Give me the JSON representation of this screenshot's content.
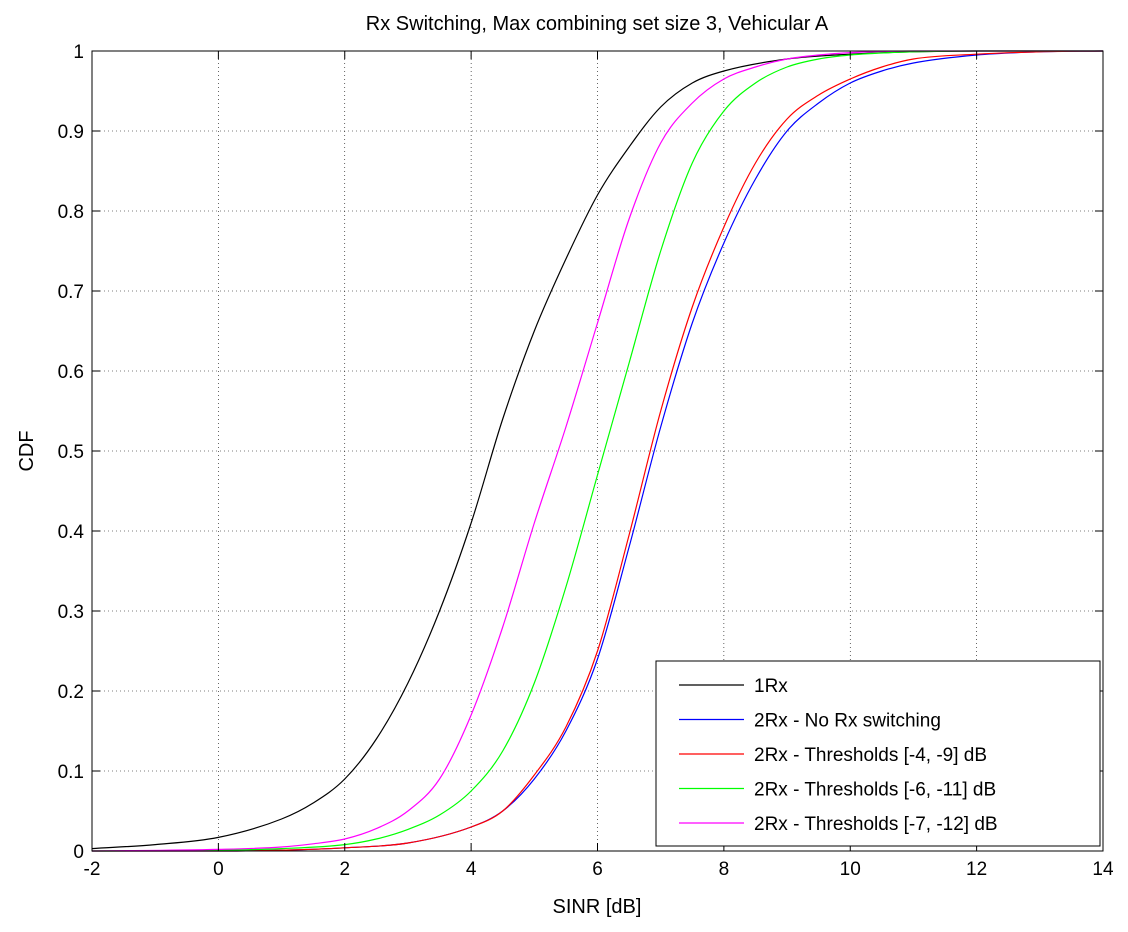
{
  "chart_data": {
    "type": "line",
    "title": "Rx Switching, Max combining set size 3, Vehicular A",
    "xlabel": "SINR [dB]",
    "ylabel": "CDF",
    "xlim": [
      -2,
      14
    ],
    "ylim": [
      0,
      1
    ],
    "xticks": [
      -2,
      0,
      2,
      4,
      6,
      8,
      10,
      12,
      14
    ],
    "yticks": [
      0,
      0.1,
      0.2,
      0.3,
      0.4,
      0.5,
      0.6,
      0.7,
      0.8,
      0.9,
      1
    ],
    "xtick_labels": [
      "-2",
      "0",
      "2",
      "4",
      "6",
      "8",
      "10",
      "12",
      "14"
    ],
    "ytick_labels": [
      "0",
      "0.1",
      "0.2",
      "0.3",
      "0.4",
      "0.5",
      "0.6",
      "0.7",
      "0.8",
      "0.9",
      "1"
    ],
    "grid": true,
    "legend_position": "bottom-right",
    "series": [
      {
        "name": "1Rx",
        "color": "#000000",
        "x": [
          -2,
          -1,
          0,
          1,
          1.5,
          2,
          2.5,
          3,
          3.5,
          4,
          4.5,
          5,
          5.5,
          6,
          6.5,
          7,
          7.5,
          8,
          9,
          10,
          11,
          12,
          13,
          14
        ],
        "y": [
          0.003,
          0.008,
          0.017,
          0.04,
          0.06,
          0.09,
          0.14,
          0.21,
          0.3,
          0.41,
          0.54,
          0.65,
          0.74,
          0.82,
          0.88,
          0.93,
          0.96,
          0.975,
          0.99,
          0.996,
          0.999,
          1.0,
          1.0,
          1.0
        ]
      },
      {
        "name": "2Rx - No Rx switching",
        "color": "#0000ff",
        "x": [
          -2,
          0,
          1,
          2,
          3,
          4,
          4.5,
          5,
          5.5,
          6,
          6.5,
          7,
          7.5,
          8,
          8.5,
          9,
          9.5,
          10,
          10.5,
          11,
          12,
          13,
          14
        ],
        "y": [
          0.0,
          0.0,
          0.001,
          0.004,
          0.01,
          0.03,
          0.05,
          0.09,
          0.15,
          0.24,
          0.38,
          0.53,
          0.66,
          0.76,
          0.84,
          0.9,
          0.935,
          0.96,
          0.975,
          0.985,
          0.995,
          0.999,
          1.0
        ]
      },
      {
        "name": "2Rx - Thresholds [-4, -9] dB",
        "color": "#ff0000",
        "x": [
          -2,
          0,
          1,
          2,
          3,
          4,
          4.5,
          5,
          5.5,
          6,
          6.5,
          7,
          7.5,
          8,
          8.5,
          9,
          9.5,
          10,
          10.5,
          11,
          12,
          13,
          14
        ],
        "y": [
          0.0,
          0.0,
          0.001,
          0.004,
          0.01,
          0.03,
          0.05,
          0.095,
          0.155,
          0.25,
          0.395,
          0.55,
          0.68,
          0.78,
          0.86,
          0.915,
          0.945,
          0.965,
          0.98,
          0.99,
          0.996,
          0.999,
          1.0
        ]
      },
      {
        "name": "2Rx - Thresholds [-6, -11] dB",
        "color": "#00ff00",
        "x": [
          -2,
          0,
          1,
          2,
          2.5,
          3,
          3.5,
          4,
          4.5,
          5,
          5.5,
          6,
          6.5,
          7,
          7.5,
          8,
          8.5,
          9,
          9.5,
          10,
          11,
          12,
          13,
          14
        ],
        "y": [
          0.0,
          0.001,
          0.003,
          0.008,
          0.015,
          0.027,
          0.045,
          0.075,
          0.125,
          0.21,
          0.33,
          0.47,
          0.61,
          0.75,
          0.86,
          0.925,
          0.96,
          0.98,
          0.99,
          0.995,
          0.999,
          1.0,
          1.0,
          1.0
        ]
      },
      {
        "name": "2Rx - Thresholds [-7, -12] dB",
        "color": "#ff00ff",
        "x": [
          -2,
          0,
          1,
          1.5,
          2,
          2.5,
          3,
          3.5,
          4,
          4.5,
          5,
          5.5,
          6,
          6.5,
          7,
          7.5,
          8,
          8.5,
          9,
          9.5,
          10,
          11,
          12,
          13,
          14
        ],
        "y": [
          0.0,
          0.002,
          0.005,
          0.009,
          0.015,
          0.028,
          0.05,
          0.09,
          0.17,
          0.28,
          0.41,
          0.53,
          0.66,
          0.79,
          0.885,
          0.935,
          0.965,
          0.98,
          0.99,
          0.995,
          0.998,
          1.0,
          1.0,
          1.0,
          1.0
        ]
      }
    ]
  }
}
